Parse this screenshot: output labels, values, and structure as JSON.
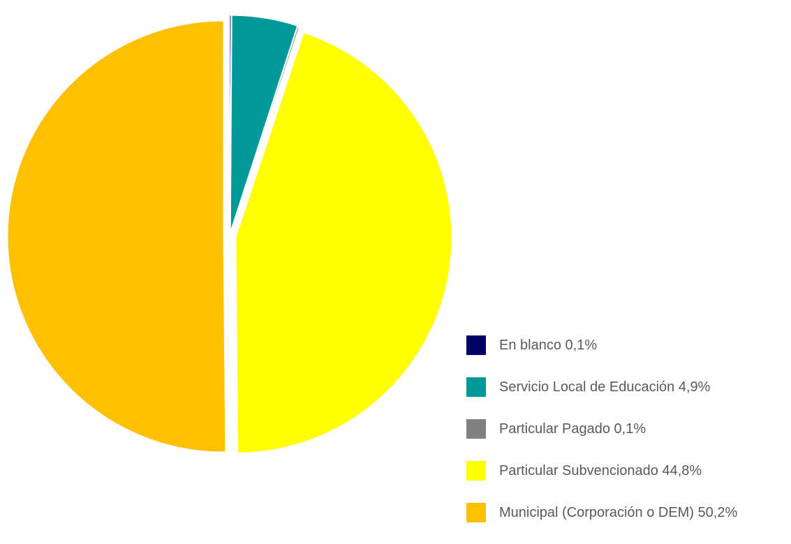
{
  "chart_data": {
    "type": "pie",
    "title": "",
    "slices": [
      {
        "label": "En blanco 0,1%",
        "value": 0.1,
        "color": "#000066"
      },
      {
        "label": "Servicio Local de Educación 4,9%",
        "value": 4.9,
        "color": "#009999"
      },
      {
        "label": "Particular Pagado 0,1%",
        "value": 0.1,
        "color": "#808080"
      },
      {
        "label": "Particular Subvencionado 44,8%",
        "value": 44.8,
        "color": "#FFFF00"
      },
      {
        "label": "Municipal (Corporación o DEM) 50,2%",
        "value": 50.2,
        "color": "#FFC000"
      }
    ],
    "legend_position": "bottom-right",
    "exploded": true
  }
}
